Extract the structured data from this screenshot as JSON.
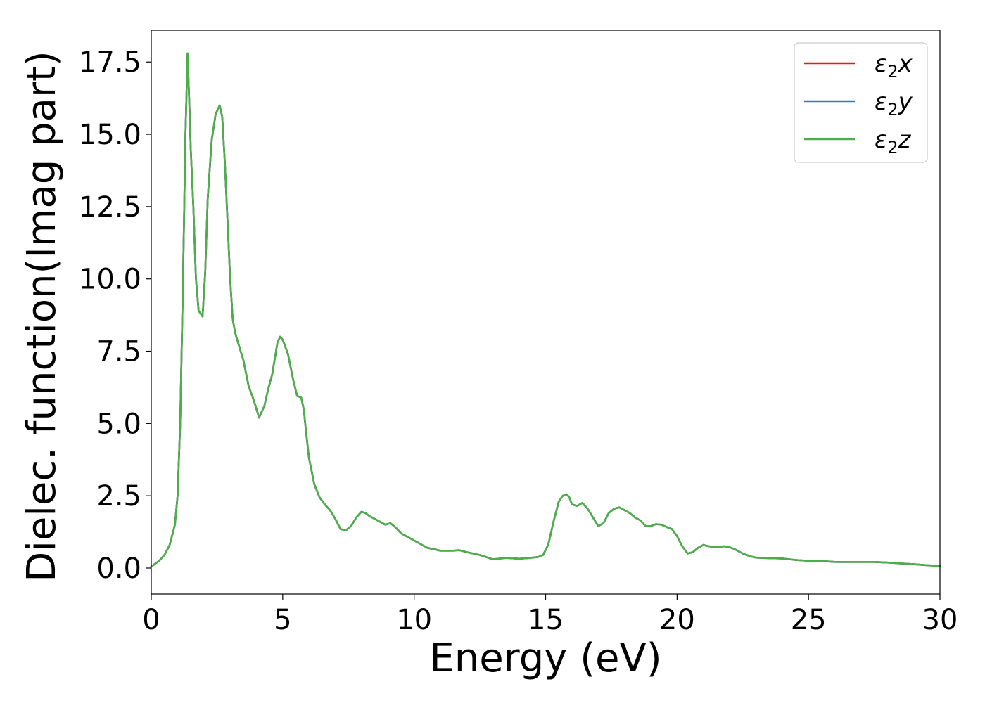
{
  "chart_data": {
    "type": "line",
    "title": "",
    "xlabel": "Energy (eV)",
    "ylabel": "Dielec. function(Imag part)",
    "xlim": [
      0,
      30
    ],
    "ylim": [
      -0.9,
      18.6
    ],
    "xticks": [
      0,
      5,
      10,
      15,
      20,
      25,
      30
    ],
    "yticks": [
      0.0,
      2.5,
      5.0,
      7.5,
      10.0,
      12.5,
      15.0,
      17.5
    ],
    "ytick_labels": [
      "0.0",
      "2.5",
      "5.0",
      "7.5",
      "10.0",
      "12.5",
      "15.0",
      "17.5"
    ],
    "xtick_labels": [
      "0",
      "5",
      "10",
      "15",
      "20",
      "25",
      "30"
    ],
    "grid": false,
    "legend_position": "top-right",
    "series": [
      {
        "name": "ε₂x",
        "legend_base": "ε",
        "legend_sub": "2",
        "legend_tail": "x",
        "color": "#e41a1c"
      },
      {
        "name": "ε₂y",
        "legend_base": "ε",
        "legend_sub": "2",
        "legend_tail": "y",
        "color": "#377eb8"
      },
      {
        "name": "ε₂z",
        "legend_base": "ε",
        "legend_sub": "2",
        "legend_tail": "z",
        "color": "#4daf4a"
      }
    ],
    "x": [
      0,
      0.3,
      0.5,
      0.7,
      0.9,
      1.0,
      1.1,
      1.2,
      1.3,
      1.38,
      1.45,
      1.5,
      1.6,
      1.7,
      1.8,
      1.95,
      2.05,
      2.15,
      2.3,
      2.45,
      2.6,
      2.7,
      2.8,
      2.9,
      3.0,
      3.1,
      3.2,
      3.3,
      3.5,
      3.7,
      3.9,
      4.1,
      4.3,
      4.45,
      4.6,
      4.8,
      4.9,
      5.0,
      5.2,
      5.4,
      5.55,
      5.7,
      5.8,
      5.9,
      6.0,
      6.2,
      6.4,
      6.6,
      6.8,
      7.0,
      7.2,
      7.4,
      7.6,
      7.8,
      8.0,
      8.15,
      8.3,
      8.5,
      8.7,
      8.9,
      9.1,
      9.3,
      9.5,
      10.0,
      10.5,
      11.0,
      11.5,
      11.7,
      12.0,
      12.5,
      13.0,
      13.5,
      14.0,
      14.4,
      14.7,
      14.9,
      15.1,
      15.3,
      15.5,
      15.65,
      15.8,
      15.9,
      16.0,
      16.2,
      16.4,
      16.6,
      16.8,
      17.0,
      17.2,
      17.4,
      17.6,
      17.8,
      18.0,
      18.2,
      18.4,
      18.6,
      18.8,
      19.0,
      19.2,
      19.4,
      19.6,
      19.8,
      20.0,
      20.2,
      20.4,
      20.6,
      20.8,
      21.0,
      21.2,
      21.5,
      21.8,
      22.0,
      22.2,
      22.5,
      22.8,
      23.0,
      23.5,
      24.0,
      24.5,
      25.0,
      25.5,
      26.0,
      26.5,
      27.0,
      27.5,
      28.0,
      28.5,
      29.0,
      29.5,
      30.0
    ],
    "y": [
      0.05,
      0.25,
      0.45,
      0.8,
      1.5,
      2.5,
      5.0,
      9.5,
      15.0,
      17.8,
      16.0,
      14.5,
      12.5,
      10.0,
      8.9,
      8.7,
      10.2,
      12.8,
      14.8,
      15.7,
      16.0,
      15.6,
      14.0,
      12.0,
      10.0,
      8.6,
      8.1,
      7.8,
      7.2,
      6.3,
      5.8,
      5.2,
      5.6,
      6.2,
      6.7,
      7.8,
      8.0,
      7.9,
      7.4,
      6.5,
      5.95,
      5.9,
      5.5,
      4.6,
      3.8,
      2.9,
      2.45,
      2.2,
      2.0,
      1.7,
      1.35,
      1.3,
      1.45,
      1.75,
      1.95,
      1.9,
      1.8,
      1.7,
      1.6,
      1.5,
      1.55,
      1.4,
      1.2,
      0.95,
      0.7,
      0.6,
      0.6,
      0.62,
      0.55,
      0.45,
      0.3,
      0.35,
      0.32,
      0.35,
      0.38,
      0.45,
      0.8,
      1.6,
      2.3,
      2.5,
      2.55,
      2.45,
      2.2,
      2.15,
      2.25,
      2.05,
      1.75,
      1.45,
      1.55,
      1.9,
      2.05,
      2.1,
      2.0,
      1.9,
      1.75,
      1.65,
      1.45,
      1.45,
      1.52,
      1.5,
      1.42,
      1.35,
      1.1,
      0.75,
      0.5,
      0.55,
      0.7,
      0.8,
      0.75,
      0.72,
      0.75,
      0.72,
      0.65,
      0.5,
      0.4,
      0.36,
      0.34,
      0.33,
      0.28,
      0.25,
      0.24,
      0.21,
      0.21,
      0.21,
      0.21,
      0.19,
      0.16,
      0.13,
      0.1,
      0.07
    ]
  }
}
